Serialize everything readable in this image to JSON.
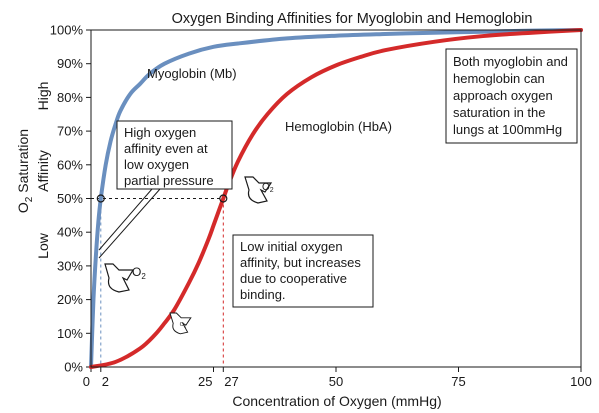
{
  "chart_data": {
    "type": "line",
    "title": "Oxygen Binding Affinities for Myoglobin and Hemoglobin",
    "xlabel": "Concentration of  Oxygen (mmHg)",
    "ylabel_parts": {
      "o": "O",
      "sub": "2",
      "rest": " Saturation"
    },
    "ylabel_affinity": "Affinity",
    "affinity_high": "High",
    "affinity_low": "Low",
    "xlim": [
      0,
      100
    ],
    "ylim": [
      0,
      100
    ],
    "x_ticks": [
      {
        "value": 0,
        "label": "0"
      },
      {
        "value": 2,
        "label": "2"
      },
      {
        "value": 25,
        "label": "25"
      },
      {
        "value": 27,
        "label": "27"
      },
      {
        "value": 50,
        "label": "50"
      },
      {
        "value": 75,
        "label": "75"
      },
      {
        "value": 100,
        "label": "100"
      }
    ],
    "y_ticks": [
      {
        "value": 0,
        "label": "0%"
      },
      {
        "value": 10,
        "label": "10%"
      },
      {
        "value": 20,
        "label": "20%"
      },
      {
        "value": 30,
        "label": "30%"
      },
      {
        "value": 40,
        "label": "40%"
      },
      {
        "value": 50,
        "label": "50%"
      },
      {
        "value": 60,
        "label": "60%"
      },
      {
        "value": 70,
        "label": "70%"
      },
      {
        "value": 80,
        "label": "80%"
      },
      {
        "value": 90,
        "label": "90%"
      },
      {
        "value": 100,
        "label": "100%"
      }
    ],
    "series": [
      {
        "name": "Myoglobin (Mb)",
        "color": "#6a8fbf",
        "x": [
          0,
          0.5,
          1,
          1.5,
          2,
          3,
          4,
          5,
          6,
          8,
          10,
          12,
          15,
          20,
          25,
          30,
          40,
          50,
          60,
          70,
          80,
          90,
          100
        ],
        "y": [
          0,
          20,
          33,
          43,
          50,
          60,
          67,
          72,
          76,
          81,
          84,
          87,
          90,
          93,
          95,
          96,
          97.5,
          98.3,
          98.8,
          99.2,
          99.5,
          99.8,
          100
        ]
      },
      {
        "name": "Hemoglobin (HbA)",
        "color": "#d42a2a",
        "x": [
          0,
          5,
          10,
          13,
          15,
          17,
          20,
          22,
          24,
          25,
          26,
          27,
          28,
          30,
          33,
          36,
          40,
          45,
          50,
          55,
          60,
          70,
          80,
          90,
          100
        ],
        "y": [
          0,
          1.5,
          5.5,
          9.5,
          13,
          17,
          25,
          31,
          38,
          42,
          46,
          50,
          54,
          61,
          69,
          75,
          81,
          86,
          89.5,
          92,
          94,
          96.5,
          98.2,
          99.2,
          100
        ]
      }
    ],
    "markers": [
      {
        "x": 2,
        "y": 50
      },
      {
        "x": 27,
        "y": 50
      }
    ],
    "annotations": {
      "mb_note": [
        "High oxygen",
        "affinity even at",
        "low oxygen",
        "partial pressure"
      ],
      "hb_note": [
        "Low initial oxygen",
        "affinity, but increases",
        "due to cooperative",
        "binding."
      ],
      "lung_note": [
        "Both myoglobin and",
        "hemoglobin can",
        "approach oxygen",
        "saturation in the",
        "lungs at 100mmHg"
      ]
    },
    "o2_symbol": {
      "o": "O",
      "sub": "2"
    }
  }
}
